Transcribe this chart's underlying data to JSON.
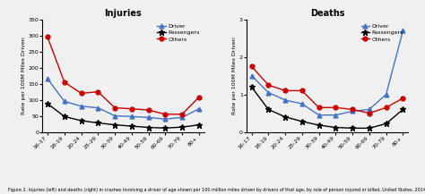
{
  "age_labels": [
    "16-17",
    "18-19",
    "20-24",
    "25-29",
    "30-39",
    "40-49",
    "50-59",
    "60-69",
    "70-79",
    "80+"
  ],
  "injuries": {
    "driver": [
      165,
      95,
      80,
      75,
      50,
      48,
      45,
      40,
      45,
      72
    ],
    "passengers": [
      88,
      48,
      35,
      28,
      22,
      18,
      14,
      12,
      15,
      22
    ],
    "others": [
      295,
      155,
      120,
      125,
      75,
      72,
      68,
      55,
      55,
      108
    ]
  },
  "deaths": {
    "driver": [
      1.5,
      1.05,
      0.85,
      0.75,
      0.45,
      0.45,
      0.55,
      0.6,
      1.0,
      2.7
    ],
    "passengers": [
      1.2,
      0.6,
      0.4,
      0.28,
      0.18,
      0.12,
      0.1,
      0.1,
      0.22,
      0.6
    ],
    "others": [
      1.75,
      1.25,
      1.1,
      1.1,
      0.65,
      0.65,
      0.6,
      0.5,
      0.65,
      0.9
    ]
  },
  "driver_color": "#4472c4",
  "passengers_color": "#000000",
  "others_color": "#cc0000",
  "marker_driver": "^",
  "marker_passengers": "*",
  "marker_others": "o",
  "ylabel_left": "Rate per 100M Miles Driven",
  "ylabel_right": "Rate per 100M Miles Driven",
  "title_left": "Injuries",
  "title_right": "Deaths",
  "ylim_left": [
    0,
    350
  ],
  "ylim_right": [
    0,
    3
  ],
  "yticks_left": [
    0,
    50,
    100,
    150,
    200,
    250,
    300,
    350
  ],
  "yticks_right": [
    0,
    1,
    2,
    3
  ],
  "background_color": "#f0f0f0",
  "plot_bg_color": "#f0f0f0",
  "caption": "Figure 2. Injuries (left) and deaths (right) in crashes involving a driver of age shown per 100 million miles driven by drivers of that age, by role of person injured or killed, United States, 2014-2015."
}
